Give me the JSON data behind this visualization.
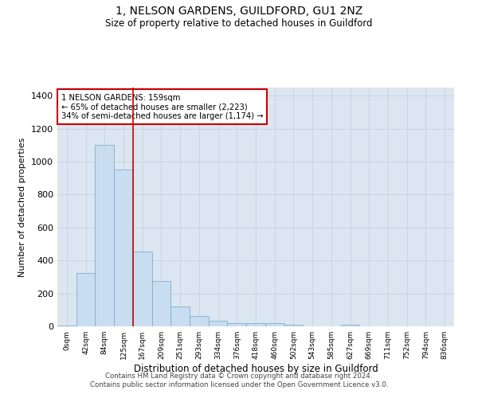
{
  "title1": "1, NELSON GARDENS, GUILDFORD, GU1 2NZ",
  "title2": "Size of property relative to detached houses in Guildford",
  "xlabel": "Distribution of detached houses by size in Guildford",
  "ylabel": "Number of detached properties",
  "bar_heights": [
    5,
    325,
    1100,
    950,
    455,
    275,
    120,
    65,
    35,
    20,
    20,
    20,
    10,
    0,
    0,
    10,
    0,
    0,
    0,
    0,
    0
  ],
  "x_labels": [
    "0sqm",
    "42sqm",
    "84sqm",
    "125sqm",
    "167sqm",
    "209sqm",
    "251sqm",
    "293sqm",
    "334sqm",
    "376sqm",
    "418sqm",
    "460sqm",
    "502sqm",
    "543sqm",
    "585sqm",
    "627sqm",
    "669sqm",
    "711sqm",
    "752sqm",
    "794sqm",
    "836sqm"
  ],
  "bar_color": "#c9ddf0",
  "bar_edge_color": "#7aafd4",
  "grid_color": "#c8d4e3",
  "background_color": "#dce6f0",
  "annotation_border_color": "#cc0000",
  "vline_color": "#cc0000",
  "vline_x": 3.5,
  "annotation_text1": "1 NELSON GARDENS: 159sqm",
  "annotation_text2": "← 65% of detached houses are smaller (2,223)",
  "annotation_text3": "34% of semi-detached houses are larger (1,174) →",
  "footer1": "Contains HM Land Registry data © Crown copyright and database right 2024.",
  "footer2": "Contains public sector information licensed under the Open Government Licence v3.0.",
  "ylim": [
    0,
    1450
  ],
  "yticks": [
    0,
    200,
    400,
    600,
    800,
    1000,
    1200,
    1400
  ]
}
